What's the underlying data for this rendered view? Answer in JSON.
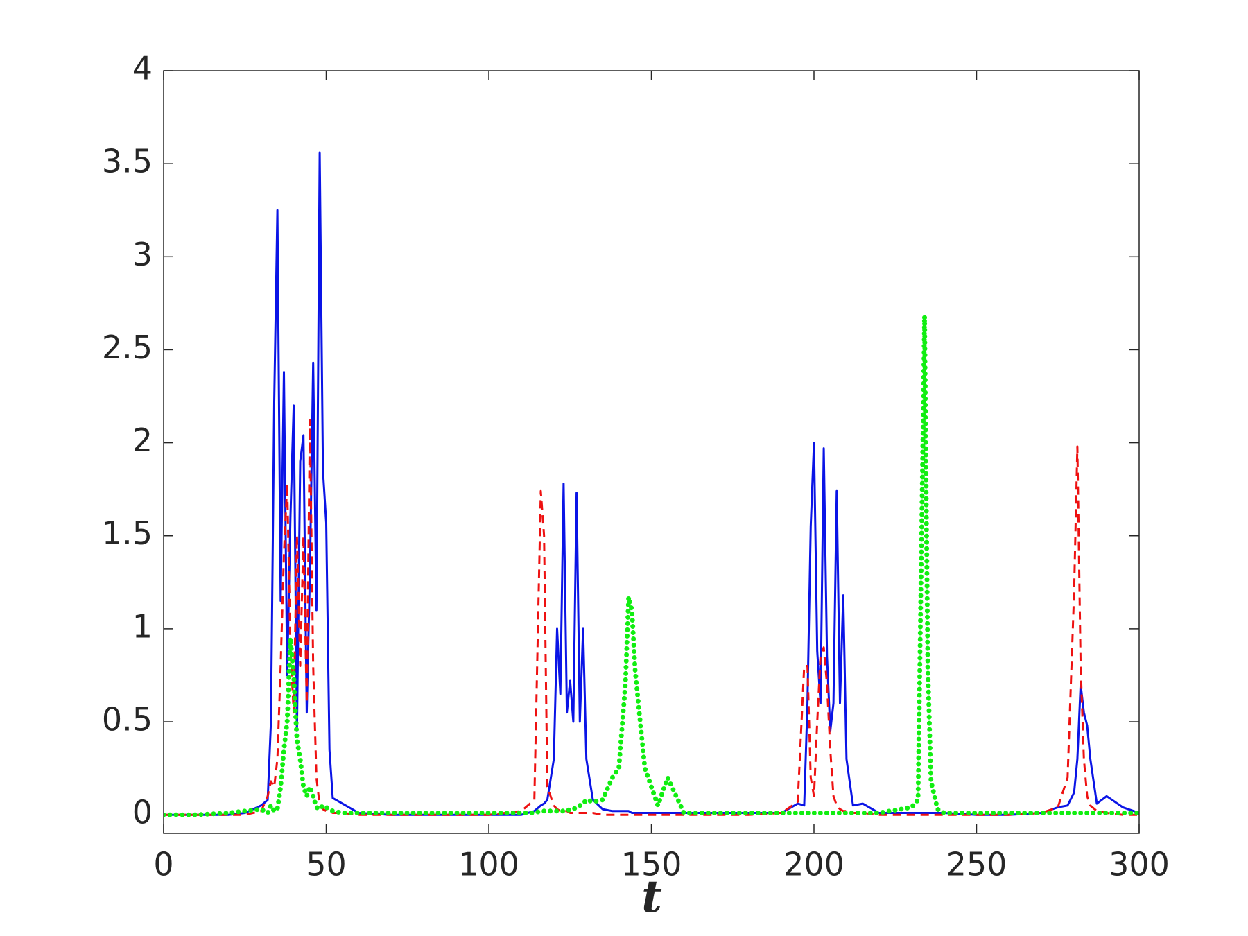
{
  "chart_data": {
    "type": "line",
    "x_label": "t",
    "xlim": [
      0,
      300
    ],
    "ylim": [
      -0.1,
      4
    ],
    "xticks": [
      0,
      50,
      100,
      150,
      200,
      250,
      300
    ],
    "yticks": [
      0,
      0.5,
      1,
      1.5,
      2,
      2.5,
      3,
      3.5,
      4
    ],
    "box": true,
    "x": [
      0,
      10,
      20,
      25,
      30,
      32,
      33,
      34,
      35,
      36,
      37,
      38,
      39,
      40,
      41,
      42,
      43,
      44,
      45,
      46,
      47,
      48,
      49,
      50,
      51,
      52,
      55,
      60,
      70,
      80,
      90,
      100,
      110,
      114,
      116,
      117,
      118,
      120,
      121,
      122,
      123,
      124,
      125,
      126,
      127,
      128,
      129,
      130,
      132,
      135,
      138,
      140,
      142,
      143,
      144,
      145,
      146,
      148,
      150,
      152,
      155,
      160,
      170,
      180,
      190,
      195,
      197,
      198,
      199,
      200,
      201,
      202,
      203,
      204,
      205,
      206,
      207,
      208,
      209,
      210,
      212,
      215,
      220,
      230,
      232,
      234,
      235,
      236,
      238,
      240,
      250,
      260,
      270,
      275,
      278,
      280,
      281,
      282,
      283,
      284,
      285,
      287,
      290,
      295,
      300
    ],
    "series": [
      {
        "name": "blue",
        "color": "#0a14e6",
        "style": "solid",
        "values": [
          0,
          0,
          0,
          0.01,
          0.05,
          0.08,
          0.5,
          2.22,
          3.25,
          1.15,
          2.38,
          0.75,
          1.6,
          2.2,
          0.45,
          1.9,
          2.04,
          0.55,
          1.3,
          2.43,
          1.1,
          3.56,
          1.85,
          1.57,
          0.35,
          0.09,
          0.06,
          0.01,
          0,
          0,
          0,
          0,
          0,
          0.02,
          0.05,
          0.06,
          0.08,
          0.3,
          1.0,
          0.65,
          1.78,
          0.55,
          0.72,
          0.5,
          1.73,
          0.5,
          1.0,
          0.3,
          0.08,
          0.03,
          0.02,
          0.02,
          0.02,
          0.02,
          0.01,
          0.01,
          0.01,
          0.01,
          0.01,
          0.01,
          0.01,
          0.01,
          0.01,
          0.01,
          0.01,
          0.06,
          0.05,
          0.6,
          1.55,
          2.0,
          0.88,
          0.6,
          1.97,
          0.85,
          0.45,
          0.6,
          1.74,
          0.6,
          1.18,
          0.3,
          0.05,
          0.06,
          0.01,
          0.01,
          0.01,
          0.01,
          0.01,
          0.01,
          0.01,
          0.01,
          0,
          0,
          0.01,
          0.04,
          0.05,
          0.12,
          0.3,
          0.7,
          0.55,
          0.48,
          0.3,
          0.06,
          0.1,
          0.04,
          0.01
        ]
      },
      {
        "name": "red",
        "color": "#ee1111",
        "style": "dashed",
        "values": [
          0,
          0,
          0,
          0,
          0.02,
          0.1,
          0.18,
          0.15,
          0.3,
          0.8,
          1.4,
          1.78,
          0.9,
          0.55,
          1.5,
          0.8,
          1.5,
          0.6,
          2.12,
          0.8,
          0.2,
          0.05,
          0.03,
          0.02,
          0.02,
          0.01,
          0.01,
          0,
          0,
          0,
          0,
          0,
          0.02,
          0.08,
          1.74,
          1.5,
          0.15,
          0.05,
          0.03,
          0.02,
          0.02,
          0.02,
          0.01,
          0.01,
          0.01,
          0.01,
          0.01,
          0.01,
          0.01,
          0,
          0,
          0,
          0,
          0,
          0,
          0,
          0,
          0,
          0,
          0,
          0,
          0,
          0,
          0,
          0.01,
          0.07,
          0.8,
          0.8,
          0.2,
          0.1,
          0.5,
          0.85,
          0.9,
          0.7,
          0.35,
          0.1,
          0.05,
          0.03,
          0.02,
          0.02,
          0.01,
          0.01,
          0,
          0,
          0,
          0,
          0,
          0,
          0,
          0,
          0,
          0,
          0.01,
          0.04,
          0.2,
          1.2,
          1.98,
          0.8,
          0.3,
          0.1,
          0.05,
          0.02,
          0.01,
          0,
          0
        ]
      },
      {
        "name": "green",
        "color": "#11ee11",
        "style": "dotted",
        "values": [
          0,
          0,
          0.01,
          0.02,
          0.03,
          0.01,
          0.05,
          0.02,
          0.03,
          0.15,
          0.35,
          0.5,
          0.95,
          0.75,
          0.4,
          0.3,
          0.15,
          0.1,
          0.15,
          0.1,
          0.04,
          0.03,
          0.05,
          0.04,
          0.03,
          0.02,
          0.01,
          0.01,
          0.01,
          0.01,
          0.01,
          0.01,
          0.01,
          0.01,
          0.02,
          0.02,
          0.02,
          0.02,
          0.02,
          0.02,
          0.02,
          0.02,
          0.03,
          0.03,
          0.04,
          0.05,
          0.06,
          0.08,
          0.07,
          0.08,
          0.2,
          0.25,
          0.7,
          1.17,
          1.1,
          0.78,
          0.6,
          0.25,
          0.15,
          0.05,
          0.2,
          0.01,
          0.01,
          0.01,
          0.01,
          0.01,
          0.01,
          0.01,
          0.01,
          0.01,
          0.01,
          0.01,
          0.01,
          0.01,
          0.01,
          0.01,
          0.01,
          0.01,
          0.01,
          0.01,
          0.01,
          0.01,
          0.01,
          0.04,
          0.08,
          2.68,
          0.79,
          0.18,
          0.03,
          0.01,
          0.01,
          0.01,
          0.01,
          0.01,
          0.01,
          0.01,
          0.01,
          0.01,
          0.01,
          0.01,
          0.01,
          0.01,
          0.01,
          0.01,
          0.01
        ]
      }
    ]
  }
}
